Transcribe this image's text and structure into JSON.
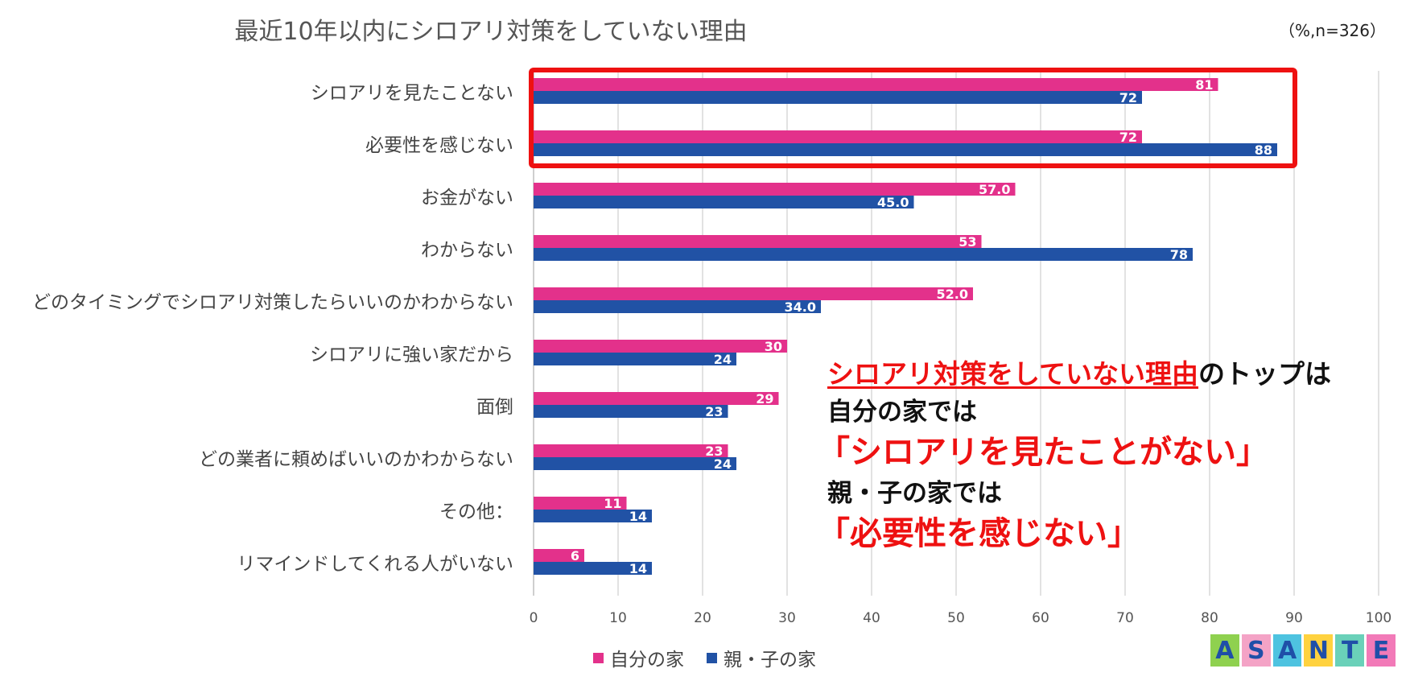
{
  "title": "最近10年以内にシロアリ対策をしていない理由",
  "note": "（%,n=326）",
  "colors": {
    "self": "#e3318b",
    "parent": "#2152a5",
    "grid": "#d9d9d9",
    "highlight": "#ee1111"
  },
  "chart_data": {
    "type": "bar",
    "orientation": "horizontal",
    "categories": [
      "シロアリを見たことない",
      "必要性を感じない",
      "お金がない",
      "わからない",
      "どのタイミングでシロアリ対策したらいいのかわからない",
      "シロアリに強い家だから",
      "面倒",
      "どの業者に頼めばいいのかわからない",
      "その他：",
      "リマインドしてくれる人がいない"
    ],
    "series": [
      {
        "name": "自分の家",
        "values": [
          81,
          72,
          57.0,
          53,
          52.0,
          30,
          29,
          23,
          11,
          6
        ],
        "labels": [
          "81",
          "72",
          "57.0",
          "53",
          "52.0",
          "30",
          "29",
          "23",
          "11",
          "6"
        ]
      },
      {
        "name": "親・子の家",
        "values": [
          72,
          88,
          45.0,
          78,
          34.0,
          24,
          23,
          24,
          14,
          14
        ],
        "labels": [
          "72",
          "88",
          "45.0",
          "78",
          "34.0",
          "24",
          "23",
          "24",
          "14",
          "14"
        ]
      }
    ],
    "xlim": [
      0,
      100
    ],
    "xticks": [
      "0",
      "10",
      "20",
      "30",
      "40",
      "50",
      "60",
      "70",
      "80",
      "90",
      "100"
    ],
    "grid": true,
    "legend": "bottom",
    "highlighted_categories": [
      0,
      1
    ]
  },
  "callout": {
    "line1_highlight": "シロアリ対策をしていない理由",
    "line1_rest": "のトップは",
    "line2": "自分の家では",
    "line3": "「シロアリを見たことがない」",
    "line4": "親・子の家では",
    "line5": "「必要性を感じない」"
  },
  "logo": {
    "letters": [
      "A",
      "S",
      "A",
      "N",
      "T",
      "E"
    ],
    "tile_colors": [
      "#8fd14f",
      "#f4a3c6",
      "#4ec3e0",
      "#ffd23f",
      "#6ad1b9",
      "#f27ab8"
    ],
    "letter_color": "#1f4fa8"
  }
}
